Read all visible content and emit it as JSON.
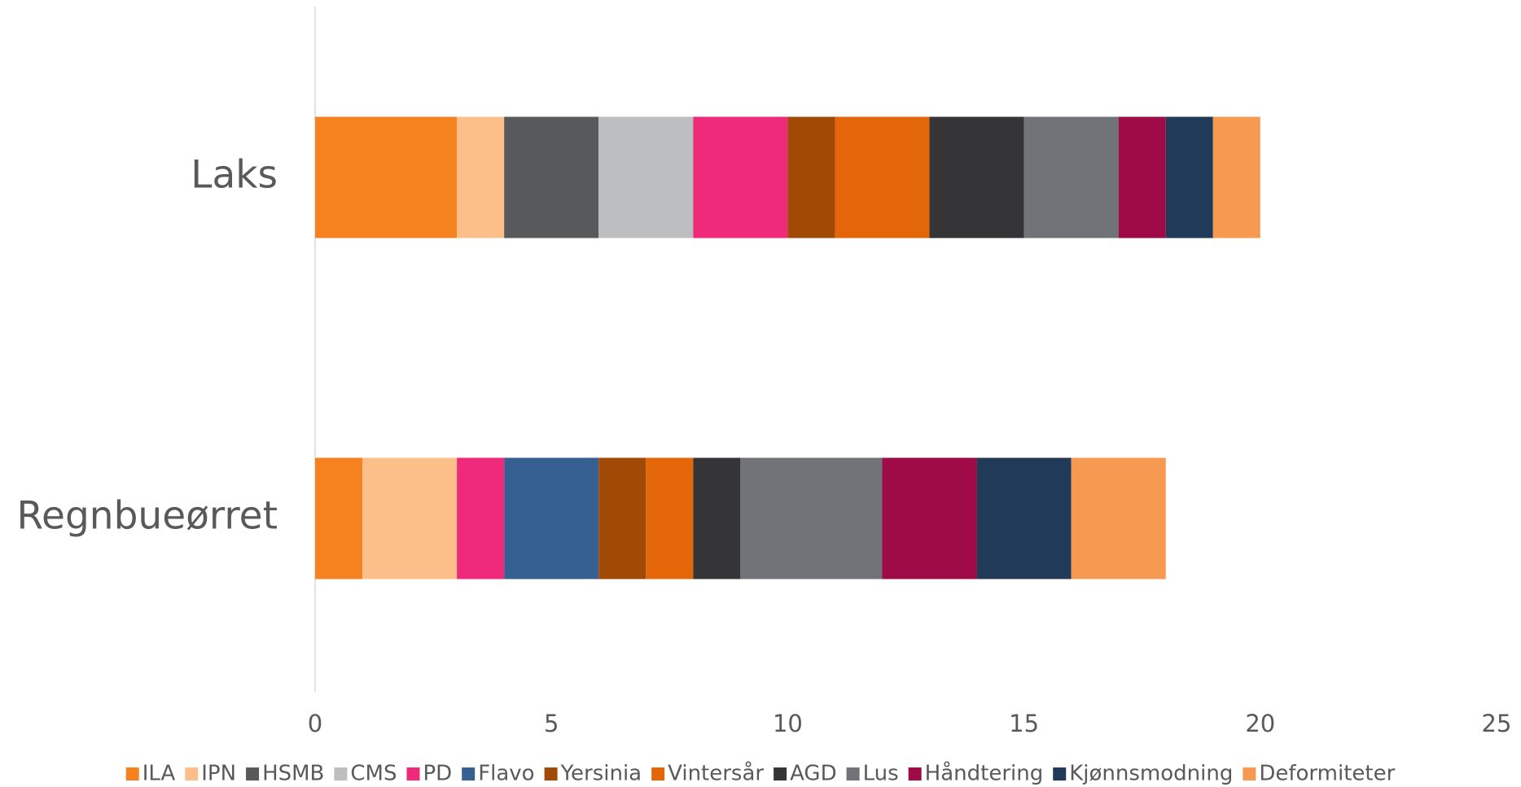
{
  "chart_data": {
    "type": "bar",
    "orientation": "horizontal",
    "stacked": true,
    "categories": [
      "Laks",
      "Regnbueørret"
    ],
    "series": [
      {
        "name": "ILA",
        "color": "#f5821f",
        "values": [
          3,
          1
        ]
      },
      {
        "name": "IPN",
        "color": "#fdbf8a",
        "values": [
          1,
          2
        ]
      },
      {
        "name": "HSMB",
        "color": "#58595b",
        "values": [
          2,
          0
        ]
      },
      {
        "name": "CMS",
        "color": "#bdbebf",
        "values": [
          2,
          0
        ]
      },
      {
        "name": "PD",
        "color": "#ef2a7b",
        "values": [
          2,
          1
        ]
      },
      {
        "name": "Flavo",
        "color": "#376092",
        "values": [
          0,
          2
        ]
      },
      {
        "name": "Yersinia",
        "color": "#a04a05",
        "values": [
          1,
          1
        ]
      },
      {
        "name": "Vintersår",
        "color": "#e36608",
        "values": [
          2,
          1
        ]
      },
      {
        "name": "AGD",
        "color": "#353537",
        "values": [
          2,
          1
        ]
      },
      {
        "name": "Lus",
        "color": "#707377",
        "values": [
          2,
          3
        ]
      },
      {
        "name": "Håndtering",
        "color": "#9e0b47",
        "values": [
          1,
          2
        ]
      },
      {
        "name": "Kjønnsmodning",
        "color": "#213a58",
        "values": [
          1,
          2
        ]
      },
      {
        "name": "Deformiteter",
        "color": "#f69a52",
        "values": [
          1,
          2
        ]
      }
    ],
    "xlim": [
      0,
      25
    ],
    "xticks": [
      0,
      5,
      10,
      15,
      20,
      25
    ],
    "grid": false,
    "legend": "bottom"
  }
}
